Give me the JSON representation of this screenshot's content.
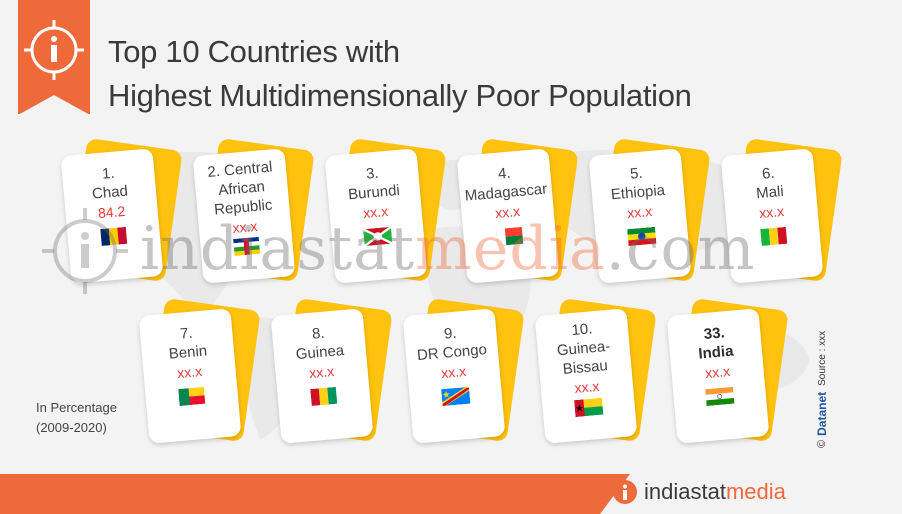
{
  "header": {
    "title_line1": "Top 10 Countries with",
    "title_line2": "Highest Multidimensionally Poor Population",
    "icon": "info-icon"
  },
  "cards": [
    {
      "rank": "1.",
      "name": "Chad",
      "value": "84.2",
      "flag": "chad"
    },
    {
      "rank": "2. Central",
      "name": "African Republic",
      "value": "xx.x",
      "flag": "car"
    },
    {
      "rank": "3.",
      "name": "Burundi",
      "value": "xx.x",
      "flag": "burundi"
    },
    {
      "rank": "4.",
      "name": "Madagascar",
      "value": "xx.x",
      "flag": "madagascar"
    },
    {
      "rank": "5.",
      "name": "Ethiopia",
      "value": "xx.x",
      "flag": "ethiopia"
    },
    {
      "rank": "6.",
      "name": "Mali",
      "value": "xx.x",
      "flag": "mali"
    },
    {
      "rank": "7.",
      "name": "Benin",
      "value": "xx.x",
      "flag": "benin"
    },
    {
      "rank": "8.",
      "name": "Guinea",
      "value": "xx.x",
      "flag": "guinea"
    },
    {
      "rank": "9.",
      "name": "DR Congo",
      "value": "xx.x",
      "flag": "drcongo"
    },
    {
      "rank": "10.",
      "name": "Guinea-Bissau",
      "value": "xx.x",
      "flag": "guineabissau"
    },
    {
      "rank": "33.",
      "name": "India",
      "value": "xx.x",
      "flag": "india"
    }
  ],
  "note": {
    "line1": "In Percentage",
    "line2": "(2009-2020)"
  },
  "watermark": {
    "part1": "indiastat",
    "part2": "media",
    "part3": ".com"
  },
  "brand": {
    "part1": "indiastat",
    "part2": "media"
  },
  "source": {
    "copyright": "©",
    "datanet": "Datanet",
    "text": "Source : xxx"
  },
  "colors": {
    "accent": "#ee6a3b",
    "card_back": "#ffc20e",
    "value": "#e53935"
  }
}
